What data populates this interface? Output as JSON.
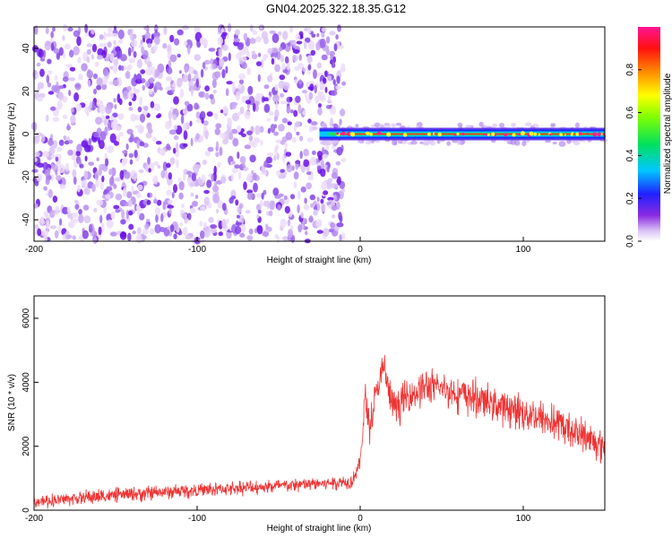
{
  "title": "GN04.2025.322.18.35.G12",
  "colors": {
    "snr_line": "#ee3333",
    "purple_strong": "#6a10e8",
    "purple_light": "#c9a8f2"
  },
  "chart_data": [
    {
      "type": "heatmap",
      "title": "GN04.2025.322.18.35.G12",
      "xlabel": "Height of straight line (km)",
      "ylabel": "Frequency (Hz)",
      "xlim": [
        -200,
        150
      ],
      "ylim": [
        -50,
        50
      ],
      "x_ticks": [
        -200,
        -100,
        0,
        100
      ],
      "y_ticks": [
        -40,
        -20,
        0,
        20,
        40
      ],
      "colorbar": {
        "label": "Normalized spectral amplitude",
        "range": [
          0,
          1
        ],
        "ticks": [
          0.0,
          0.2,
          0.4,
          0.6,
          0.8
        ],
        "colormap": "rainbow (white-purple-blue-cyan-green-yellow-red-magenta)"
      },
      "regions": [
        {
          "x_range": [
            -200,
            -10
          ],
          "y_range": [
            -50,
            50
          ],
          "amplitude_range": [
            0.02,
            0.15
          ],
          "description": "noise"
        },
        {
          "x_range": [
            -25,
            150
          ],
          "y_center": 0,
          "y_halfwidth": 3,
          "amplitude_range": [
            0.2,
            0.9
          ],
          "description": "tone"
        }
      ],
      "grid": false,
      "legend": "none"
    },
    {
      "type": "line",
      "xlabel": "Height of straight line (km)",
      "ylabel": "SNR (10 * v/v)",
      "xlim": [
        -200,
        150
      ],
      "ylim": [
        0,
        6700
      ],
      "x_ticks": [
        -200,
        -100,
        0,
        100
      ],
      "y_ticks": [
        0,
        2000,
        4000,
        6000
      ],
      "grid": false,
      "legend": "none",
      "series": [
        {
          "x": [
            -200,
            -180,
            -160,
            -140,
            -120,
            -100,
            -80,
            -60,
            -40,
            -20,
            -5,
            0,
            3,
            6,
            10,
            15,
            18,
            22,
            30,
            40,
            50,
            60,
            70,
            80,
            90,
            100,
            110,
            120,
            130,
            140,
            150
          ],
          "y": [
            250,
            350,
            430,
            500,
            560,
            620,
            680,
            730,
            780,
            850,
            900,
            1500,
            3500,
            2600,
            3700,
            4500,
            3500,
            3200,
            3600,
            3850,
            3800,
            3650,
            3500,
            3350,
            3200,
            3050,
            2900,
            2700,
            2500,
            2250,
            2000
          ],
          "noise_amplitude": 200
        }
      ]
    }
  ]
}
